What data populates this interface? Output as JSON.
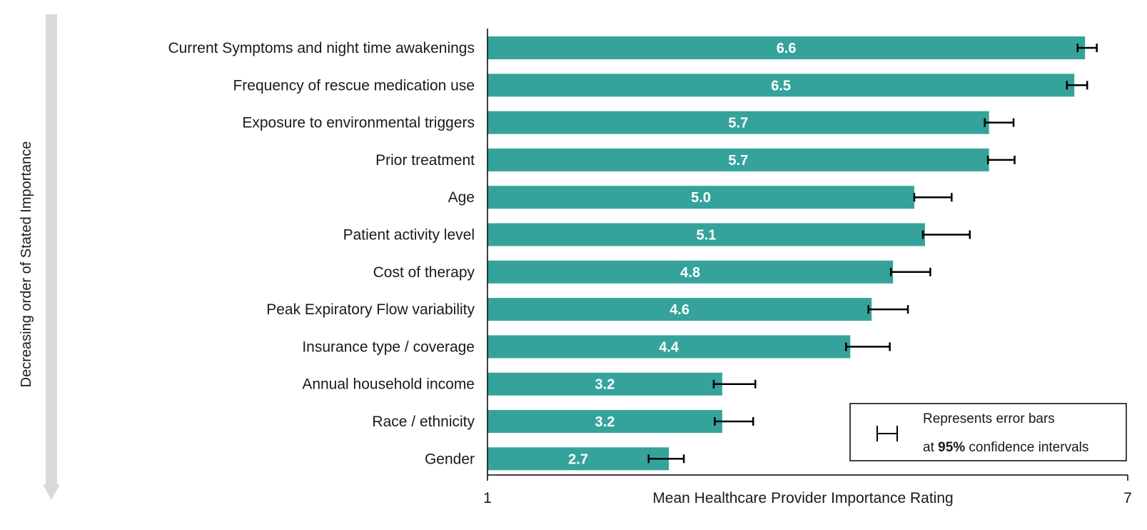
{
  "chart_data": {
    "type": "bar",
    "orientation": "horizontal",
    "categories": [
      "Current Symptoms and night time awakenings",
      "Frequency of rescue medication use",
      "Exposure to environmental triggers",
      "Prior treatment",
      "Age",
      "Patient activity level",
      "Cost of therapy",
      "Peak Expiratory Flow variability",
      "Insurance type / coverage",
      "Annual household income",
      "Race / ethnicity",
      "Gender"
    ],
    "values": [
      6.6,
      6.5,
      5.7,
      5.7,
      5.0,
      5.1,
      4.8,
      4.6,
      4.4,
      3.2,
      3.2,
      2.7
    ],
    "value_labels": [
      "6.6",
      "6.5",
      "5.7",
      "5.7",
      "5.0",
      "5.1",
      "4.8",
      "4.6",
      "4.4",
      "3.2",
      "3.2",
      "2.7"
    ],
    "error_low": [
      6.53,
      6.43,
      5.66,
      5.69,
      5.0,
      5.08,
      4.78,
      4.57,
      4.36,
      3.12,
      3.13,
      2.51
    ],
    "error_high": [
      6.71,
      6.62,
      5.93,
      5.94,
      5.35,
      5.52,
      5.15,
      4.94,
      4.77,
      3.51,
      3.49,
      2.84
    ],
    "xlabel": "Mean Healthcare Provider Importance Rating",
    "xlim": [
      1,
      7
    ],
    "xtick_labels": [
      "1",
      "7"
    ],
    "side_label": "Decreasing order of Stated Importance",
    "legend": {
      "line1": "Represents error bars",
      "line2_prefix": "at ",
      "line2_bold": "95%",
      "line2_suffix": " confidence intervals"
    },
    "colors": {
      "bar": "#35a39b",
      "error_bar": "#000000",
      "axis": "#000000",
      "arrow": "#d9d9d9"
    }
  }
}
